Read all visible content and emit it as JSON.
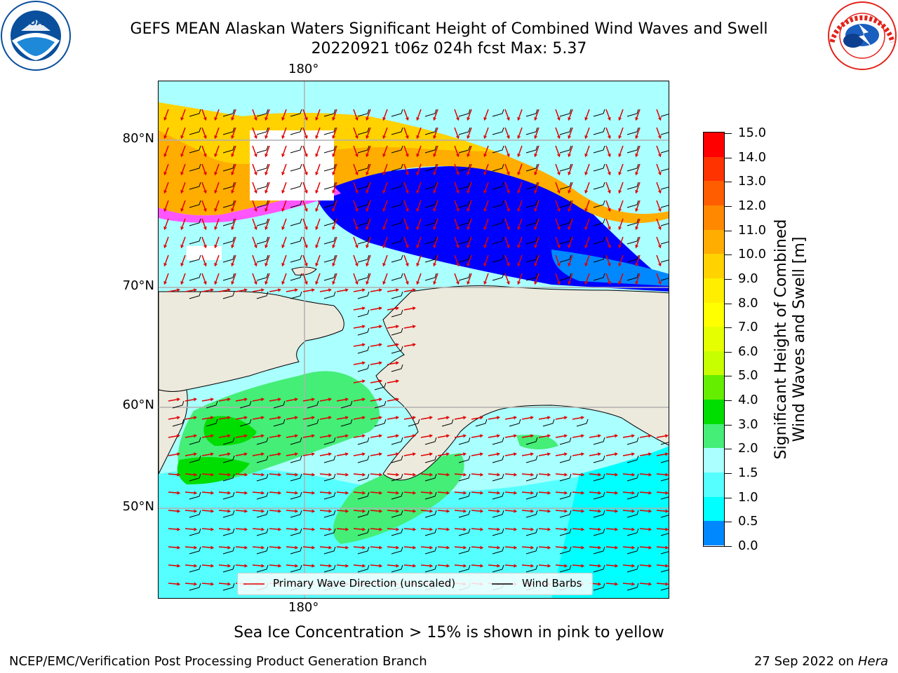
{
  "header": {
    "title_line1": "GEFS MEAN Alaskan Waters Significant Height of Combined Wind Waves and Swell",
    "title_line2": "20220921 t06z 024h fcst   Max: 5.37"
  },
  "logos": {
    "noaa": {
      "text": "NOAA",
      "color": "#0a4f9c"
    },
    "nws": {
      "ring_text": "NATIONAL WEATHER SERVICE",
      "color": "#e2231a"
    }
  },
  "map": {
    "lon_labels": [
      "180°",
      "180°"
    ],
    "lat_labels": [
      "80°N",
      "70°N",
      "60°N",
      "50°N"
    ],
    "colors": {
      "land": "#ece9dd",
      "grid": "#b0b0b0",
      "wave_arrow": "#e00000",
      "wind_barb": "#000000"
    },
    "legend": {
      "wave_label": "Primary Wave Direction (unscaled)",
      "wind_label": "Wind Barbs"
    }
  },
  "colorbar": {
    "title_line1": "Significant Height of Combined",
    "title_line2": "Wind Waves and Swell [m]",
    "tick_labels": [
      "15.0",
      "14.0",
      "13.0",
      "12.0",
      "11.0",
      "10.0",
      "9.0",
      "8.0",
      "7.0",
      "6.0",
      "5.0",
      "4.0",
      "3.0",
      "2.0",
      "1.5",
      "1.0",
      "0.5",
      "0.0"
    ],
    "segment_colors": [
      "#ff0000",
      "#ff3300",
      "#ff5d00",
      "#ff8800",
      "#ffad00",
      "#ffd200",
      "#ffee00",
      "#ffff00",
      "#e6ff00",
      "#c8ff00",
      "#66ee00",
      "#00dd00",
      "#44ee77",
      "#aaffff",
      "#55ffff",
      "#00ffff",
      "#0088ff",
      "#0000ff"
    ]
  },
  "caption": "Sea Ice Concentration > 15% is shown in pink to yellow",
  "footer": {
    "left": "NCEP/EMC/Verification Post Processing Product Generation Branch",
    "right_prefix": "27 Sep 2022 on",
    "right_host": "Hera"
  }
}
